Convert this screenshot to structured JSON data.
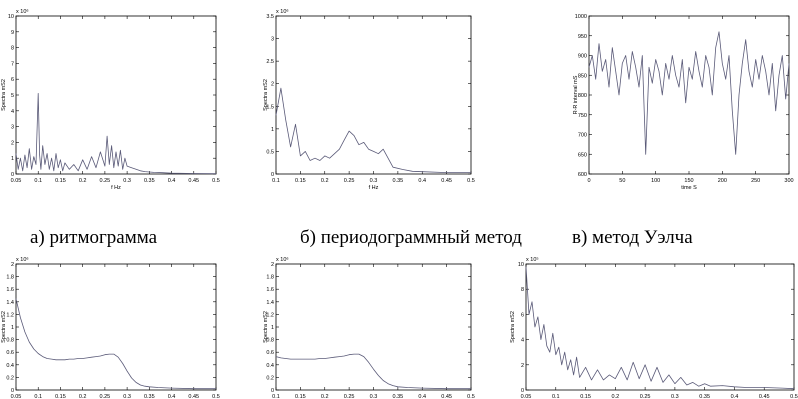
{
  "captions": {
    "a": "а) ритмограмма",
    "b": "б) периодограммный метод",
    "c": "в) метод Уэлча"
  },
  "colors": {
    "line": "#5a5a78",
    "axis": "#000000",
    "background": "#ffffff"
  },
  "chart_data": [
    {
      "type": "line",
      "xlabel": "f Hz",
      "ylabel": "Spectra mS2",
      "multiplier": "x 10⁶",
      "xlim": [
        0.05,
        0.5
      ],
      "ylim": [
        0,
        10
      ],
      "xticks": [
        "0.05",
        "0.1",
        "0.15",
        "0.2",
        "0.25",
        "0.3",
        "0.35",
        "0.4",
        "0.45",
        "0.5"
      ],
      "yticks": [
        "0",
        "1",
        "2",
        "3",
        "4",
        "5",
        "6",
        "7",
        "8",
        "9",
        "10"
      ],
      "series": [
        {
          "x": [
            0.05,
            0.055,
            0.06,
            0.065,
            0.07,
            0.075,
            0.08,
            0.085,
            0.09,
            0.095,
            0.1,
            0.103,
            0.106,
            0.11,
            0.115,
            0.12,
            0.125,
            0.13,
            0.135,
            0.14,
            0.145,
            0.15,
            0.155,
            0.16,
            0.17,
            0.18,
            0.19,
            0.2,
            0.21,
            0.22,
            0.23,
            0.24,
            0.25,
            0.255,
            0.26,
            0.265,
            0.27,
            0.275,
            0.28,
            0.285,
            0.29,
            0.295,
            0.3,
            0.31,
            0.32,
            0.33,
            0.34,
            0.36,
            0.38,
            0.4,
            0.45,
            0.5
          ],
          "y": [
            1.3,
            0.3,
            1.0,
            0.2,
            1.2,
            0.4,
            1.6,
            0.3,
            1.1,
            0.6,
            5.1,
            1.2,
            0.3,
            1.8,
            0.6,
            1.3,
            0.3,
            1.0,
            0.2,
            1.3,
            0.4,
            0.9,
            0.2,
            0.7,
            0.3,
            0.6,
            0.2,
            0.9,
            0.3,
            1.1,
            0.4,
            1.4,
            0.5,
            2.4,
            0.6,
            1.8,
            0.4,
            1.4,
            0.5,
            1.5,
            0.3,
            1.0,
            0.5,
            0.4,
            0.3,
            0.2,
            0.15,
            0.1,
            0.08,
            0.05,
            0.03,
            0.02
          ]
        }
      ]
    },
    {
      "type": "line",
      "xlabel": "f Hz",
      "ylabel": "Spectra mS2",
      "multiplier": "x 10⁶",
      "xlim": [
        0.1,
        0.5
      ],
      "ylim": [
        0,
        3.5
      ],
      "xticks": [
        "0.1",
        "0.15",
        "0.2",
        "0.25",
        "0.3",
        "0.35",
        "0.4",
        "0.45",
        "0.5"
      ],
      "yticks": [
        "0",
        "0.5",
        "1",
        "1.5",
        "2",
        "2.5",
        "3",
        "3.5"
      ],
      "series": [
        {
          "x": [
            0.1,
            0.11,
            0.12,
            0.13,
            0.14,
            0.15,
            0.16,
            0.17,
            0.18,
            0.19,
            0.2,
            0.21,
            0.22,
            0.23,
            0.24,
            0.25,
            0.26,
            0.27,
            0.28,
            0.29,
            0.3,
            0.31,
            0.32,
            0.33,
            0.34,
            0.36,
            0.38,
            0.4,
            0.45,
            0.5
          ],
          "y": [
            1.3,
            1.9,
            1.2,
            0.6,
            1.1,
            0.4,
            0.5,
            0.3,
            0.35,
            0.3,
            0.4,
            0.35,
            0.45,
            0.55,
            0.75,
            0.95,
            0.85,
            0.65,
            0.7,
            0.55,
            0.5,
            0.45,
            0.55,
            0.35,
            0.15,
            0.1,
            0.06,
            0.05,
            0.03,
            0.03
          ]
        }
      ]
    },
    {
      "type": "line",
      "xlabel": "time S",
      "ylabel": "R-R interval mS",
      "xlim": [
        0,
        300
      ],
      "ylim": [
        600,
        1000
      ],
      "xticks": [
        "0",
        "50",
        "100",
        "150",
        "200",
        "250",
        "300"
      ],
      "yticks": [
        "600",
        "650",
        "700",
        "750",
        "800",
        "850",
        "900",
        "950",
        "1000"
      ],
      "series": [
        {
          "x": [
            0,
            5,
            10,
            15,
            20,
            25,
            30,
            35,
            40,
            45,
            50,
            55,
            60,
            65,
            70,
            75,
            80,
            85,
            90,
            95,
            100,
            105,
            110,
            115,
            120,
            125,
            130,
            135,
            140,
            145,
            150,
            155,
            160,
            165,
            170,
            175,
            180,
            185,
            190,
            195,
            200,
            205,
            210,
            215,
            220,
            225,
            230,
            235,
            240,
            245,
            250,
            255,
            260,
            265,
            270,
            275,
            280,
            285,
            290,
            295,
            300
          ],
          "y": [
            870,
            900,
            840,
            930,
            860,
            890,
            820,
            920,
            860,
            800,
            880,
            900,
            840,
            910,
            870,
            820,
            900,
            650,
            870,
            830,
            890,
            860,
            800,
            880,
            840,
            900,
            850,
            820,
            890,
            780,
            870,
            840,
            910,
            860,
            820,
            900,
            870,
            800,
            920,
            960,
            880,
            840,
            900,
            760,
            650,
            800,
            880,
            940,
            860,
            820,
            890,
            840,
            900,
            860,
            800,
            880,
            760,
            850,
            900,
            790,
            880
          ]
        }
      ]
    },
    {
      "type": "line",
      "xlabel": "f Hz",
      "ylabel": "Spectra mS2",
      "multiplier": "x 10⁶",
      "xlim": [
        0.05,
        0.5
      ],
      "ylim": [
        0,
        2
      ],
      "xticks": [
        "0.05",
        "0.1",
        "0.15",
        "0.2",
        "0.25",
        "0.3",
        "0.35",
        "0.4",
        "0.45",
        "0.5"
      ],
      "yticks": [
        "0",
        "0.2",
        "0.4",
        "0.6",
        "0.8",
        "1",
        "1.2",
        "1.4",
        "1.6",
        "1.8",
        "2"
      ],
      "series": [
        {
          "x": [
            0.05,
            0.06,
            0.07,
            0.08,
            0.09,
            0.1,
            0.11,
            0.12,
            0.13,
            0.14,
            0.15,
            0.16,
            0.17,
            0.18,
            0.19,
            0.2,
            0.21,
            0.22,
            0.23,
            0.24,
            0.25,
            0.26,
            0.27,
            0.28,
            0.29,
            0.3,
            0.31,
            0.32,
            0.33,
            0.34,
            0.35,
            0.37,
            0.4,
            0.45,
            0.5
          ],
          "y": [
            1.45,
            1.15,
            0.92,
            0.76,
            0.65,
            0.58,
            0.53,
            0.5,
            0.49,
            0.48,
            0.48,
            0.48,
            0.49,
            0.49,
            0.5,
            0.5,
            0.51,
            0.52,
            0.53,
            0.54,
            0.56,
            0.57,
            0.57,
            0.52,
            0.42,
            0.3,
            0.19,
            0.12,
            0.08,
            0.06,
            0.05,
            0.04,
            0.03,
            0.02,
            0.02
          ]
        }
      ]
    },
    {
      "type": "line",
      "xlabel": "f Hz",
      "ylabel": "Spectra mS2",
      "multiplier": "x 10⁶",
      "xlim": [
        0.1,
        0.5
      ],
      "ylim": [
        0,
        2
      ],
      "xticks": [
        "0.1",
        "0.15",
        "0.2",
        "0.25",
        "0.3",
        "0.35",
        "0.4",
        "0.45",
        "0.5"
      ],
      "yticks": [
        "0",
        "0.2",
        "0.4",
        "0.6",
        "0.8",
        "1",
        "1.2",
        "1.4",
        "1.6",
        "1.8",
        "2"
      ],
      "series": [
        {
          "x": [
            0.1,
            0.11,
            0.12,
            0.13,
            0.14,
            0.15,
            0.16,
            0.17,
            0.18,
            0.19,
            0.2,
            0.21,
            0.22,
            0.23,
            0.24,
            0.25,
            0.26,
            0.27,
            0.28,
            0.29,
            0.3,
            0.31,
            0.32,
            0.33,
            0.34,
            0.35,
            0.37,
            0.4,
            0.45,
            0.5
          ],
          "y": [
            0.53,
            0.51,
            0.5,
            0.49,
            0.49,
            0.49,
            0.49,
            0.49,
            0.49,
            0.5,
            0.5,
            0.51,
            0.52,
            0.53,
            0.54,
            0.56,
            0.57,
            0.57,
            0.53,
            0.44,
            0.33,
            0.23,
            0.15,
            0.1,
            0.07,
            0.05,
            0.04,
            0.03,
            0.02,
            0.02
          ]
        }
      ]
    },
    {
      "type": "line",
      "xlabel": "f Hz",
      "ylabel": "Spectra mS2",
      "multiplier": "x 10⁵",
      "xlim": [
        0.05,
        0.5
      ],
      "ylim": [
        0,
        10
      ],
      "xticks": [
        "0.05",
        "0.1",
        "0.15",
        "0.2",
        "0.25",
        "0.3",
        "0.35",
        "0.4",
        "0.45",
        "0.5"
      ],
      "yticks": [
        "0",
        "2",
        "4",
        "6",
        "8",
        "10"
      ],
      "series": [
        {
          "x": [
            0.05,
            0.055,
            0.06,
            0.065,
            0.07,
            0.075,
            0.08,
            0.085,
            0.09,
            0.095,
            0.1,
            0.105,
            0.11,
            0.115,
            0.12,
            0.125,
            0.13,
            0.135,
            0.14,
            0.15,
            0.16,
            0.17,
            0.18,
            0.19,
            0.2,
            0.21,
            0.22,
            0.23,
            0.24,
            0.25,
            0.26,
            0.27,
            0.28,
            0.29,
            0.3,
            0.31,
            0.32,
            0.33,
            0.34,
            0.35,
            0.36,
            0.38,
            0.4,
            0.42,
            0.45,
            0.48,
            0.5
          ],
          "y": [
            9.8,
            6.0,
            7.0,
            5.0,
            5.8,
            4.0,
            5.2,
            3.5,
            3.0,
            4.5,
            2.8,
            3.4,
            2.0,
            3.0,
            1.6,
            2.4,
            1.2,
            2.6,
            1.0,
            1.8,
            0.8,
            1.6,
            0.8,
            1.2,
            0.9,
            1.8,
            0.8,
            2.2,
            0.9,
            2.0,
            0.7,
            1.8,
            0.6,
            1.2,
            0.5,
            1.0,
            0.4,
            0.6,
            0.3,
            0.5,
            0.3,
            0.35,
            0.25,
            0.2,
            0.2,
            0.15,
            0.1
          ]
        }
      ]
    }
  ]
}
